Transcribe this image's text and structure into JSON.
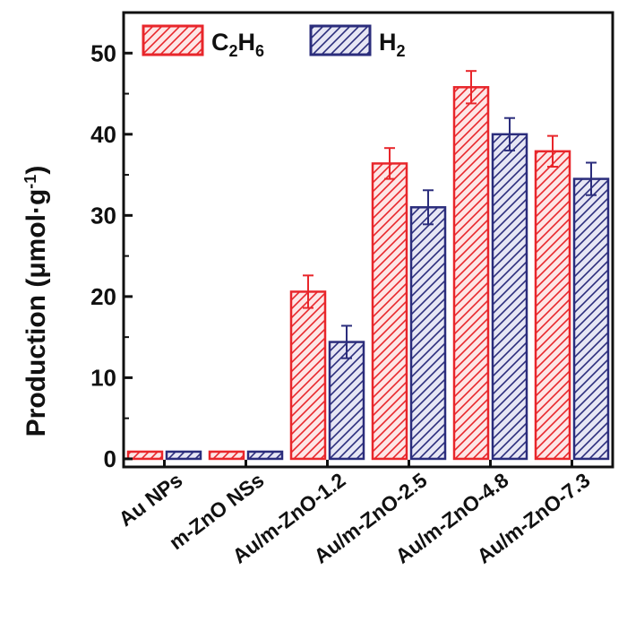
{
  "chart_data": {
    "type": "bar",
    "categories": [
      "Au NPs",
      "m-ZnO NSs",
      "Au/m-ZnO-1.2",
      "Au/m-ZnO-2.5",
      "Au/m-ZnO-4.8",
      "Au/m-ZnO-7.3"
    ],
    "series": [
      {
        "name": "C2H6",
        "name_main": "C",
        "name_sub1": "2",
        "name_mid": "H",
        "name_sub2": "6",
        "color": "#e8262b",
        "values": [
          0,
          0,
          20.6,
          36.4,
          45.8,
          37.9
        ],
        "errors": [
          0,
          0,
          2.0,
          1.9,
          2.0,
          1.9
        ]
      },
      {
        "name": "H2",
        "name_main": "H",
        "name_sub1": "2",
        "color": "#2b2d7c",
        "values": [
          0,
          0,
          14.4,
          31.0,
          40.0,
          34.5
        ],
        "errors": [
          0,
          0,
          2.0,
          2.1,
          2.0,
          2.0
        ]
      }
    ],
    "ylabel_main": "Production (μmol·g",
    "ylabel_sup": "-1",
    "ylabel_close": ")",
    "ylim": [
      -1,
      55
    ],
    "yticks": [
      0,
      10,
      20,
      30,
      40,
      50
    ],
    "legend_position": "top-left",
    "grid": false
  }
}
